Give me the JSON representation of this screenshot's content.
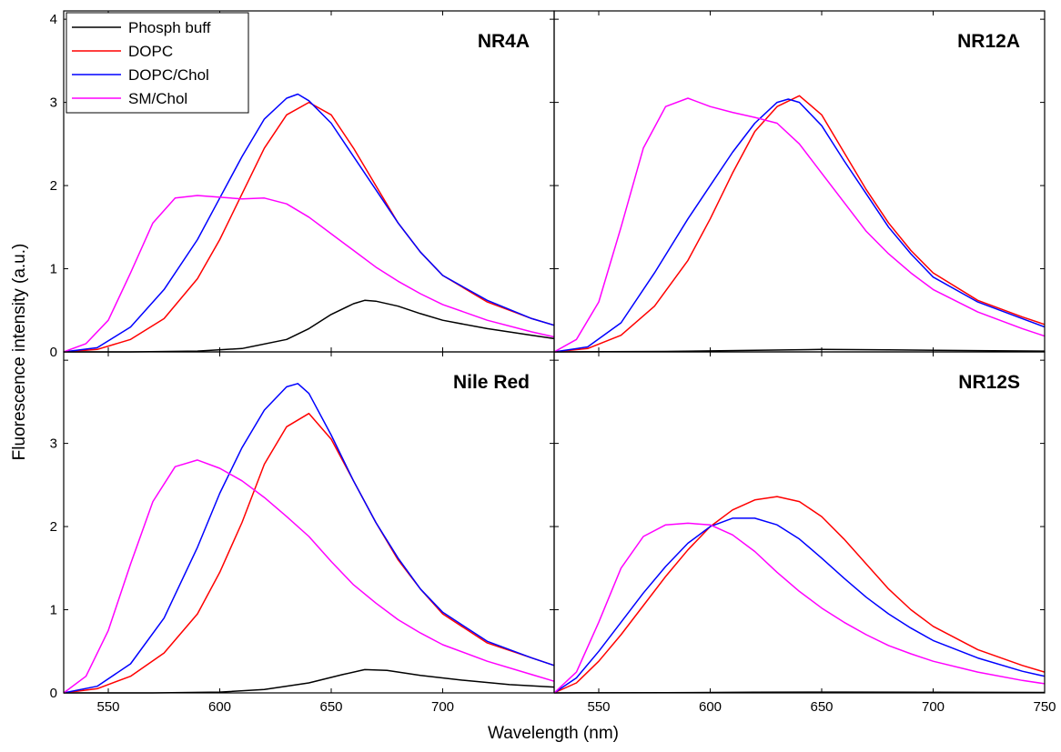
{
  "chart_data": {
    "type": "line",
    "xlabel": "Wavelength (nm)",
    "ylabel": "Fluorescence intensity (a.u.)",
    "xlim": [
      530,
      750
    ],
    "x_ticks": [
      550,
      600,
      650,
      700,
      750
    ],
    "x_tick_labels": [
      "550",
      "600",
      "650",
      "700",
      "750"
    ],
    "legend": {
      "placement": "top-left",
      "entries": [
        {
          "name": "Phosph buff",
          "color": "#000000"
        },
        {
          "name": "DOPC",
          "color": "#ff0000"
        },
        {
          "name": "DOPC/Chol",
          "color": "#0000ff"
        },
        {
          "name": "SM/Chol",
          "color": "#ff00ff"
        }
      ]
    },
    "panels": [
      {
        "id": "nr4a",
        "title": "NR4A",
        "ylim": [
          0,
          4.1
        ],
        "y_ticks": [
          "0",
          "1",
          "2",
          "3",
          "4"
        ],
        "series": [
          {
            "name": "Phosph buff",
            "color": "#000000",
            "x": [
              530,
              560,
              590,
              610,
              630,
              640,
              650,
              660,
              665,
              670,
              680,
              690,
              700,
              720,
              740,
              750
            ],
            "y": [
              0,
              0,
              0.01,
              0.04,
              0.15,
              0.28,
              0.45,
              0.58,
              0.62,
              0.61,
              0.55,
              0.46,
              0.38,
              0.28,
              0.2,
              0.16
            ]
          },
          {
            "name": "DOPC",
            "color": "#ff0000",
            "x": [
              530,
              545,
              560,
              575,
              590,
              600,
              610,
              620,
              630,
              640,
              650,
              660,
              670,
              680,
              690,
              700,
              720,
              740,
              750
            ],
            "y": [
              0,
              0.03,
              0.15,
              0.4,
              0.88,
              1.35,
              1.9,
              2.45,
              2.85,
              3.0,
              2.85,
              2.45,
              2.0,
              1.55,
              1.2,
              0.92,
              0.6,
              0.4,
              0.32
            ]
          },
          {
            "name": "DOPC/Chol",
            "color": "#0000ff",
            "x": [
              530,
              545,
              560,
              575,
              590,
              600,
              610,
              620,
              630,
              635,
              640,
              650,
              660,
              670,
              680,
              690,
              700,
              720,
              740,
              750
            ],
            "y": [
              0,
              0.05,
              0.3,
              0.75,
              1.35,
              1.85,
              2.35,
              2.8,
              3.05,
              3.1,
              3.02,
              2.75,
              2.35,
              1.95,
              1.55,
              1.2,
              0.92,
              0.62,
              0.4,
              0.32
            ]
          },
          {
            "name": "SM/Chol",
            "color": "#ff00ff",
            "x": [
              530,
              540,
              550,
              560,
              570,
              580,
              590,
              600,
              610,
              620,
              630,
              640,
              650,
              660,
              670,
              680,
              690,
              700,
              720,
              740,
              750
            ],
            "y": [
              0,
              0.1,
              0.38,
              0.95,
              1.55,
              1.85,
              1.88,
              1.86,
              1.84,
              1.85,
              1.78,
              1.62,
              1.42,
              1.22,
              1.02,
              0.85,
              0.7,
              0.57,
              0.38,
              0.24,
              0.18
            ]
          }
        ]
      },
      {
        "id": "nr12a",
        "title": "NR12A",
        "ylim": [
          0,
          4.1
        ],
        "y_ticks": [],
        "series": [
          {
            "name": "Phosph buff",
            "color": "#000000",
            "x": [
              530,
              580,
              620,
              650,
              680,
              720,
              750
            ],
            "y": [
              0,
              0.005,
              0.02,
              0.03,
              0.025,
              0.015,
              0.01
            ]
          },
          {
            "name": "DOPC",
            "color": "#ff0000",
            "x": [
              530,
              545,
              560,
              575,
              590,
              600,
              610,
              620,
              630,
              640,
              650,
              660,
              670,
              680,
              690,
              700,
              720,
              740,
              750
            ],
            "y": [
              0,
              0.04,
              0.2,
              0.55,
              1.1,
              1.6,
              2.15,
              2.65,
              2.95,
              3.08,
              2.85,
              2.4,
              1.95,
              1.55,
              1.22,
              0.95,
              0.62,
              0.42,
              0.33
            ]
          },
          {
            "name": "DOPC/Chol",
            "color": "#0000ff",
            "x": [
              530,
              545,
              560,
              575,
              590,
              600,
              610,
              620,
              630,
              635,
              640,
              650,
              660,
              670,
              680,
              690,
              700,
              720,
              740,
              750
            ],
            "y": [
              0,
              0.06,
              0.35,
              0.95,
              1.6,
              2.0,
              2.4,
              2.75,
              3.0,
              3.04,
              3.0,
              2.72,
              2.3,
              1.9,
              1.5,
              1.18,
              0.9,
              0.6,
              0.4,
              0.3
            ]
          },
          {
            "name": "SM/Chol",
            "color": "#ff00ff",
            "x": [
              530,
              540,
              550,
              560,
              570,
              580,
              590,
              600,
              610,
              620,
              630,
              640,
              650,
              660,
              670,
              680,
              690,
              700,
              720,
              740,
              750
            ],
            "y": [
              0,
              0.15,
              0.6,
              1.5,
              2.45,
              2.95,
              3.05,
              2.95,
              2.88,
              2.82,
              2.75,
              2.5,
              2.15,
              1.8,
              1.45,
              1.18,
              0.95,
              0.75,
              0.48,
              0.28,
              0.19
            ]
          }
        ]
      },
      {
        "id": "nile-red",
        "title": "Nile Red",
        "ylim": [
          0,
          4.1
        ],
        "y_ticks": [
          "0",
          "1",
          "2",
          "3",
          ""
        ],
        "series": [
          {
            "name": "Phosph buff",
            "color": "#000000",
            "x": [
              530,
              570,
              600,
              620,
              640,
              655,
              665,
              675,
              690,
              710,
              730,
              750
            ],
            "y": [
              0,
              0,
              0.01,
              0.04,
              0.12,
              0.22,
              0.28,
              0.27,
              0.21,
              0.15,
              0.1,
              0.07
            ]
          },
          {
            "name": "DOPC",
            "color": "#ff0000",
            "x": [
              530,
              545,
              560,
              575,
              590,
              600,
              610,
              620,
              630,
              640,
              650,
              660,
              670,
              680,
              690,
              700,
              720,
              740,
              750
            ],
            "y": [
              0,
              0.05,
              0.2,
              0.48,
              0.95,
              1.45,
              2.05,
              2.75,
              3.2,
              3.36,
              3.05,
              2.55,
              2.05,
              1.6,
              1.25,
              0.95,
              0.6,
              0.42,
              0.33
            ]
          },
          {
            "name": "DOPC/Chol",
            "color": "#0000ff",
            "x": [
              530,
              545,
              560,
              575,
              590,
              600,
              610,
              620,
              630,
              635,
              640,
              650,
              660,
              670,
              680,
              690,
              700,
              720,
              740,
              750
            ],
            "y": [
              0,
              0.08,
              0.35,
              0.9,
              1.75,
              2.4,
              2.95,
              3.4,
              3.68,
              3.72,
              3.6,
              3.1,
              2.55,
              2.05,
              1.62,
              1.25,
              0.97,
              0.62,
              0.42,
              0.33
            ]
          },
          {
            "name": "SM/Chol",
            "color": "#ff00ff",
            "x": [
              530,
              540,
              550,
              560,
              570,
              580,
              590,
              600,
              610,
              620,
              630,
              640,
              650,
              660,
              670,
              680,
              690,
              700,
              720,
              740,
              750
            ],
            "y": [
              0,
              0.2,
              0.75,
              1.55,
              2.3,
              2.72,
              2.8,
              2.7,
              2.55,
              2.35,
              2.12,
              1.88,
              1.58,
              1.3,
              1.08,
              0.88,
              0.72,
              0.58,
              0.38,
              0.22,
              0.14
            ]
          }
        ]
      },
      {
        "id": "nr12s",
        "title": "NR12S",
        "ylim": [
          0,
          4.1
        ],
        "y_ticks": [],
        "series": [
          {
            "name": "Phosph buff",
            "color": "#000000",
            "x": [
              530,
              580,
              620,
              660,
              700,
              750
            ],
            "y": [
              0,
              0.003,
              0.008,
              0.01,
              0.008,
              0.005
            ]
          },
          {
            "name": "DOPC",
            "color": "#ff0000",
            "x": [
              530,
              540,
              550,
              560,
              570,
              580,
              590,
              600,
              610,
              620,
              630,
              640,
              650,
              660,
              670,
              680,
              690,
              700,
              720,
              740,
              750
            ],
            "y": [
              0,
              0.12,
              0.38,
              0.7,
              1.05,
              1.4,
              1.72,
              2.0,
              2.2,
              2.32,
              2.36,
              2.3,
              2.12,
              1.85,
              1.55,
              1.25,
              1.0,
              0.8,
              0.52,
              0.33,
              0.25
            ]
          },
          {
            "name": "DOPC/Chol",
            "color": "#0000ff",
            "x": [
              530,
              540,
              550,
              560,
              570,
              580,
              590,
              600,
              610,
              620,
              630,
              640,
              650,
              660,
              670,
              680,
              690,
              700,
              720,
              740,
              750
            ],
            "y": [
              0,
              0.18,
              0.5,
              0.85,
              1.2,
              1.52,
              1.8,
              2.0,
              2.1,
              2.1,
              2.02,
              1.85,
              1.62,
              1.38,
              1.15,
              0.95,
              0.78,
              0.63,
              0.42,
              0.26,
              0.2
            ]
          },
          {
            "name": "SM/Chol",
            "color": "#ff00ff",
            "x": [
              530,
              540,
              550,
              560,
              570,
              580,
              590,
              600,
              610,
              620,
              630,
              640,
              650,
              660,
              670,
              680,
              690,
              700,
              720,
              740,
              750
            ],
            "y": [
              0,
              0.25,
              0.85,
              1.5,
              1.88,
              2.02,
              2.04,
              2.02,
              1.9,
              1.7,
              1.45,
              1.22,
              1.02,
              0.85,
              0.7,
              0.57,
              0.47,
              0.38,
              0.25,
              0.15,
              0.11
            ]
          }
        ]
      }
    ]
  }
}
